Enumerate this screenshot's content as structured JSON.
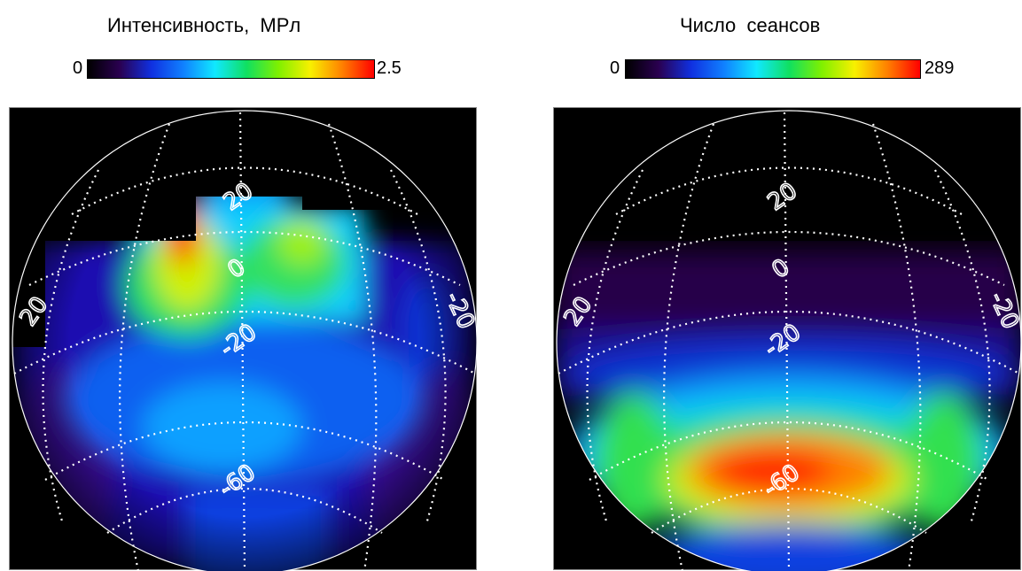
{
  "colorscale": [
    "#000000",
    "#2a0050",
    "#1030e0",
    "#1080ff",
    "#10e8ff",
    "#10e060",
    "#80f000",
    "#f8f000",
    "#ff8000",
    "#ff0000"
  ],
  "panels": [
    {
      "title": "Интенсивность,  МРл",
      "colorbar": {
        "min_label": "0",
        "max_label": "2.5"
      },
      "grid_labels": [
        "20",
        "0",
        "-20",
        "-60",
        "20",
        "-20"
      ]
    },
    {
      "title": "Число  сеансов",
      "colorbar": {
        "min_label": "0",
        "max_label": "289"
      },
      "grid_labels": [
        "20",
        "0",
        "-20",
        "-60",
        "20",
        "-20"
      ]
    }
  ],
  "chart_data": [
    {
      "type": "heatmap",
      "title": "Интенсивность,  МРл",
      "colorbar_range": [
        0,
        2.5
      ],
      "projection": "orthographic globe, dotted lat/lon graticule",
      "latitude_labels": [
        "20",
        "0",
        "-20",
        "-60"
      ],
      "longitude_labels": [
        "20",
        "-20"
      ]
    },
    {
      "type": "heatmap",
      "title": "Число  сеансов",
      "colorbar_range": [
        0,
        289
      ],
      "projection": "orthographic globe, dotted lat/lon graticule",
      "latitude_labels": [
        "20",
        "0",
        "-20",
        "-60"
      ],
      "longitude_labels": [
        "20",
        "-20"
      ]
    }
  ]
}
